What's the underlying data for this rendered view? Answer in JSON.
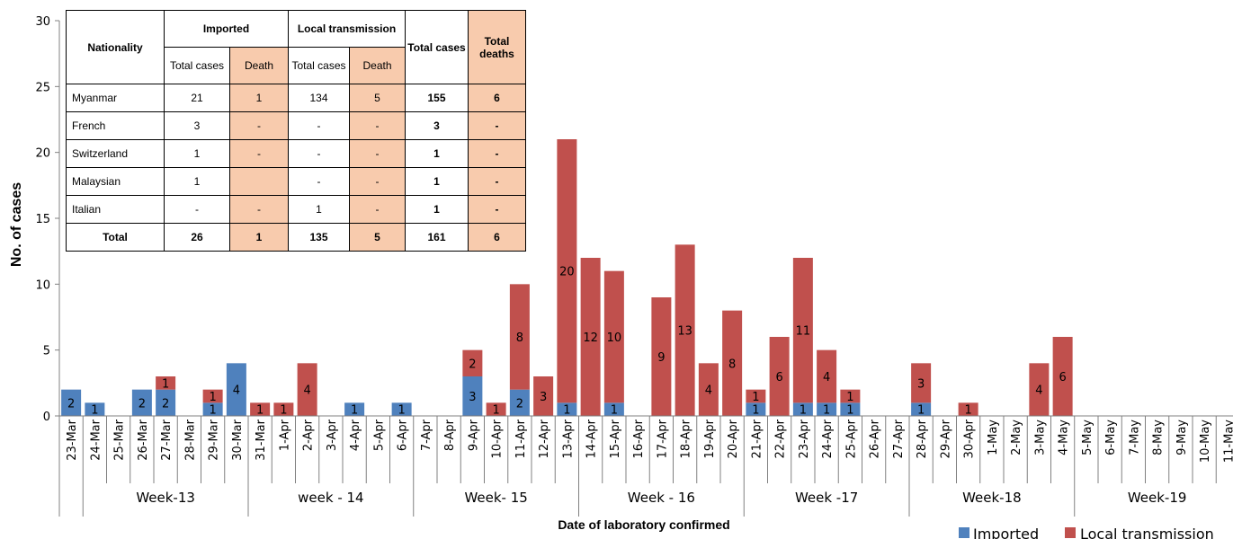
{
  "chart_data": {
    "type": "bar",
    "stacked": true,
    "ylabel": "No. of cases",
    "xlabel": "Date of laboratory confirmed",
    "ylim": [
      0,
      30
    ],
    "yticks": [
      0,
      5,
      10,
      15,
      20,
      25,
      30
    ],
    "categories": [
      "23-Mar",
      "24-Mar",
      "25-Mar",
      "26-Mar",
      "27-Mar",
      "28-Mar",
      "29-Mar",
      "30-Mar",
      "31-Mar",
      "1-Apr",
      "2-Apr",
      "3-Apr",
      "4-Apr",
      "5-Apr",
      "6-Apr",
      "7-Apr",
      "8-Apr",
      "9-Apr",
      "10-Apr",
      "11-Apr",
      "12-Apr",
      "13-Apr",
      "14-Apr",
      "15-Apr",
      "16-Apr",
      "17-Apr",
      "18-Apr",
      "19-Apr",
      "20-Apr",
      "21-Apr",
      "22-Apr",
      "23-Apr",
      "24-Apr",
      "25-Apr",
      "26-Apr",
      "27-Apr",
      "28-Apr",
      "29-Apr",
      "30-Apr",
      "1-May",
      "2-May",
      "3-May",
      "4-May",
      "5-May",
      "6-May",
      "7-May",
      "8-May",
      "9-May",
      "10-May",
      "11-May"
    ],
    "series": [
      {
        "name": "Imported",
        "color": "#4f81bd",
        "values": [
          2,
          1,
          0,
          2,
          2,
          0,
          1,
          4,
          0,
          0,
          0,
          0,
          1,
          0,
          1,
          0,
          0,
          3,
          0,
          2,
          0,
          1,
          0,
          1,
          0,
          0,
          0,
          0,
          0,
          1,
          0,
          1,
          1,
          1,
          0,
          0,
          1,
          0,
          0,
          0,
          0,
          0,
          0,
          0,
          0,
          0,
          0,
          0,
          0,
          0
        ]
      },
      {
        "name": "Local transmission",
        "color": "#c0504d",
        "values": [
          0,
          0,
          0,
          0,
          1,
          0,
          1,
          0,
          1,
          1,
          4,
          0,
          0,
          0,
          0,
          0,
          0,
          2,
          1,
          8,
          3,
          20,
          12,
          10,
          0,
          9,
          13,
          4,
          8,
          1,
          6,
          11,
          4,
          1,
          0,
          0,
          3,
          0,
          1,
          0,
          0,
          4,
          6,
          0,
          0,
          0,
          0,
          0,
          0,
          0
        ]
      }
    ],
    "weeks": [
      {
        "label": "Week-13",
        "start": 1,
        "end": 8
      },
      {
        "label": "week - 14",
        "start": 8,
        "end": 15
      },
      {
        "label": "Week- 15",
        "start": 15,
        "end": 22
      },
      {
        "label": "Week - 16",
        "start": 22,
        "end": 29
      },
      {
        "label": "Week -17",
        "start": 29,
        "end": 36
      },
      {
        "label": "Week-18",
        "start": 36,
        "end": 43
      },
      {
        "label": "Week-19",
        "start": 43,
        "end": 50
      }
    ],
    "legend_position": "bottom-right"
  },
  "table": {
    "nationality_header": "Nationality",
    "imported_header": "Imported",
    "local_header": "Local transmission",
    "total_cases_header": "Total cases",
    "total_deaths_header": "Total deaths",
    "sub_total_cases": "Total cases",
    "sub_death": "Death",
    "sub_total_cases_2": "Total cases",
    "sub_death_2": "Death",
    "rows": [
      {
        "nat": "Myanmar",
        "imp_cases": "21",
        "imp_death": "1",
        "loc_cases": "134",
        "loc_death": "5",
        "total_cases": "155",
        "total_deaths": "6"
      },
      {
        "nat": "French",
        "imp_cases": "3",
        "imp_death": "-",
        "loc_cases": "-",
        "loc_death": "-",
        "total_cases": "3",
        "total_deaths": "-"
      },
      {
        "nat": "Switzerland",
        "imp_cases": "1",
        "imp_death": "-",
        "loc_cases": "-",
        "loc_death": "-",
        "total_cases": "1",
        "total_deaths": "-"
      },
      {
        "nat": "Malaysian",
        "imp_cases": "1",
        "imp_death": "",
        "loc_cases": "-",
        "loc_death": "-",
        "total_cases": "1",
        "total_deaths": "-"
      },
      {
        "nat": "Italian",
        "imp_cases": "-",
        "imp_death": "-",
        "loc_cases": "1",
        "loc_death": "-",
        "total_cases": "1",
        "total_deaths": "-"
      },
      {
        "nat": "Total",
        "imp_cases": "26",
        "imp_death": "1",
        "loc_cases": "135",
        "loc_death": "5",
        "total_cases": "161",
        "total_deaths": "6"
      }
    ]
  }
}
